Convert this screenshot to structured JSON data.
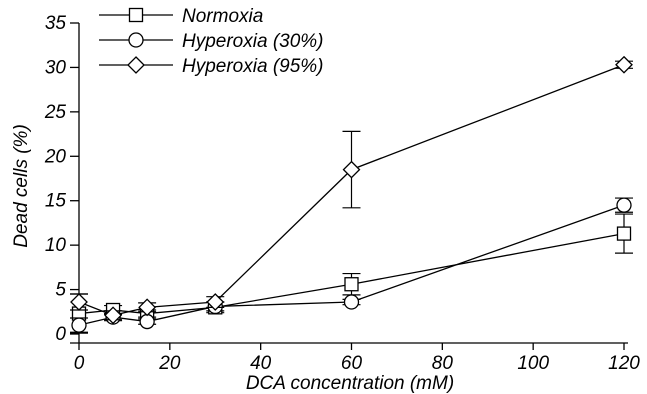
{
  "chart_data": {
    "type": "line",
    "title": "",
    "xlabel": "DCA concentration (mM)",
    "ylabel": "Dead  cells  (%)",
    "xlim": [
      0,
      120
    ],
    "ylim": [
      0,
      35
    ],
    "xticks": [
      0,
      20,
      40,
      60,
      80,
      100,
      120
    ],
    "yticks": [
      0,
      5,
      10,
      15,
      20,
      25,
      30,
      35
    ],
    "xtick_labels": [
      "0",
      "20",
      "40",
      "60",
      "80",
      "100",
      "120"
    ],
    "ytick_labels": [
      "0",
      "5",
      "10",
      "15",
      "20",
      "25",
      "30",
      "35"
    ],
    "grid": false,
    "legend_position": "top-left",
    "series": [
      {
        "name": "Normoxia",
        "marker": "square",
        "x": [
          0,
          7.5,
          15,
          30,
          60,
          120
        ],
        "y": [
          2.3,
          2.7,
          2.3,
          3.0,
          5.6,
          11.3
        ],
        "err": [
          2.2,
          0.5,
          0.4,
          0.6,
          1.2,
          2.2
        ]
      },
      {
        "name": "Hyperoxia (30%)",
        "marker": "circle",
        "x": [
          0,
          7.5,
          15,
          30,
          60,
          120
        ],
        "y": [
          1.0,
          1.9,
          1.4,
          3.1,
          3.6,
          14.5
        ],
        "err": [
          0.8,
          0.4,
          0.3,
          0.5,
          0.3,
          0.8
        ]
      },
      {
        "name": "Hyperoxia (95%)",
        "marker": "diamond",
        "x": [
          0,
          7.5,
          15,
          30,
          60,
          120
        ],
        "y": [
          3.6,
          2.1,
          3.0,
          3.6,
          18.5,
          30.3
        ],
        "err": [
          0.9,
          0.5,
          0.5,
          0.6,
          4.3,
          0.4
        ]
      }
    ]
  }
}
